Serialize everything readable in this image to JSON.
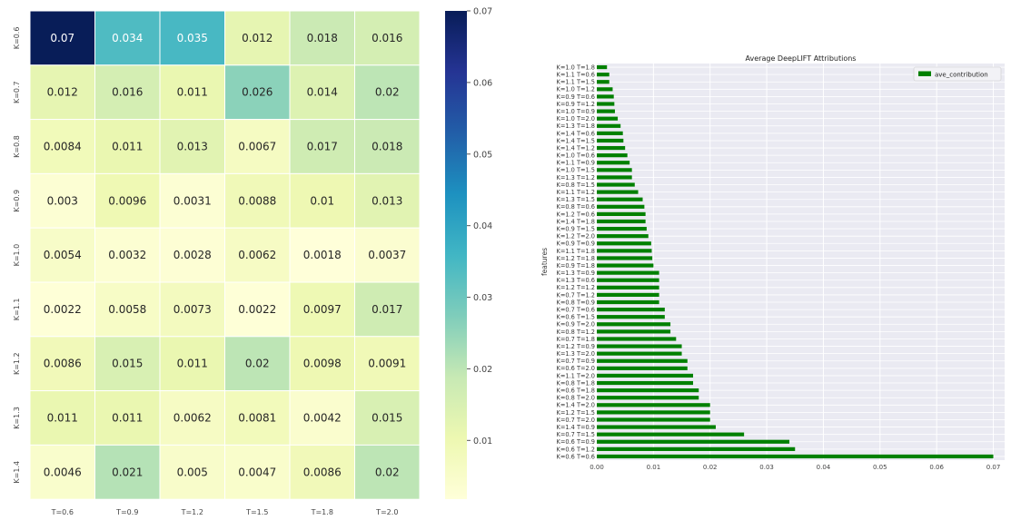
{
  "chart_data": [
    {
      "type": "heatmap",
      "title": "",
      "x_categories": [
        "T=0.6",
        "T=0.9",
        "T=1.2",
        "T=1.5",
        "T=1.8",
        "T=2.0"
      ],
      "y_categories": [
        "K=0.6",
        "K=0.7",
        "K=0.8",
        "K=0.9",
        "K=1.0",
        "K=1.1",
        "K=1.2",
        "K=1.3",
        "K=1.4"
      ],
      "values": [
        [
          0.07,
          0.034,
          0.035,
          0.012,
          0.018,
          0.016
        ],
        [
          0.012,
          0.016,
          0.011,
          0.026,
          0.014,
          0.02
        ],
        [
          0.0084,
          0.011,
          0.013,
          0.0067,
          0.017,
          0.018
        ],
        [
          0.003,
          0.0096,
          0.0031,
          0.0088,
          0.01,
          0.013
        ],
        [
          0.0054,
          0.0032,
          0.0028,
          0.0062,
          0.0018,
          0.0037
        ],
        [
          0.0022,
          0.0058,
          0.0073,
          0.0022,
          0.0097,
          0.017
        ],
        [
          0.0086,
          0.015,
          0.011,
          0.02,
          0.0098,
          0.0091
        ],
        [
          0.011,
          0.011,
          0.0062,
          0.0081,
          0.0042,
          0.015
        ],
        [
          0.0046,
          0.021,
          0.005,
          0.0047,
          0.0086,
          0.02
        ]
      ],
      "colorscale": "YlGnBu",
      "vmin": 0.0018,
      "vmax": 0.07,
      "colorbar_ticks": [
        "0.01",
        "0.02",
        "0.03",
        "0.04",
        "0.05",
        "0.06",
        "0.07"
      ]
    },
    {
      "type": "bar",
      "orientation": "horizontal",
      "title": "Average DeepLIFT Attributions",
      "xlabel": "",
      "ylabel": "features",
      "xlim": [
        0,
        0.072
      ],
      "x_ticks": [
        "0.00",
        "0.01",
        "0.02",
        "0.03",
        "0.04",
        "0.05",
        "0.06",
        "0.07"
      ],
      "grid": true,
      "legend_position": "top-right",
      "series": [
        {
          "name": "ave_contribution",
          "color": "#008000"
        }
      ],
      "categories": [
        "K=1.0 T=1.8",
        "K=1.1 T=0.6",
        "K=1.1 T=1.5",
        "K=1.0 T=1.2",
        "K=0.9 T=0.6",
        "K=0.9 T=1.2",
        "K=1.0 T=0.9",
        "K=1.0 T=2.0",
        "K=1.3 T=1.8",
        "K=1.4 T=0.6",
        "K=1.4 T=1.5",
        "K=1.4 T=1.2",
        "K=1.0 T=0.6",
        "K=1.1 T=0.9",
        "K=1.0 T=1.5",
        "K=1.3 T=1.2",
        "K=0.8 T=1.5",
        "K=1.1 T=1.2",
        "K=1.3 T=1.5",
        "K=0.8 T=0.6",
        "K=1.2 T=0.6",
        "K=1.4 T=1.8",
        "K=0.9 T=1.5",
        "K=1.2 T=2.0",
        "K=0.9 T=0.9",
        "K=1.1 T=1.8",
        "K=1.2 T=1.8",
        "K=0.9 T=1.8",
        "K=1.3 T=0.9",
        "K=1.3 T=0.6",
        "K=1.2 T=1.2",
        "K=0.7 T=1.2",
        "K=0.8 T=0.9",
        "K=0.7 T=0.6",
        "K=0.6 T=1.5",
        "K=0.9 T=2.0",
        "K=0.8 T=1.2",
        "K=0.7 T=1.8",
        "K=1.2 T=0.9",
        "K=1.3 T=2.0",
        "K=0.7 T=0.9",
        "K=0.6 T=2.0",
        "K=1.1 T=2.0",
        "K=0.8 T=1.8",
        "K=0.6 T=1.8",
        "K=0.8 T=2.0",
        "K=1.4 T=2.0",
        "K=1.2 T=1.5",
        "K=0.7 T=2.0",
        "K=1.4 T=0.9",
        "K=0.7 T=1.5",
        "K=0.6 T=0.9",
        "K=0.6 T=1.2",
        "K=0.6 T=0.6"
      ],
      "values": [
        0.0018,
        0.0022,
        0.0022,
        0.0028,
        0.003,
        0.0031,
        0.0032,
        0.0037,
        0.0042,
        0.0046,
        0.0047,
        0.005,
        0.0054,
        0.0058,
        0.0062,
        0.0062,
        0.0067,
        0.0073,
        0.0081,
        0.0084,
        0.0086,
        0.0086,
        0.0088,
        0.0091,
        0.0096,
        0.0097,
        0.0098,
        0.01,
        0.011,
        0.011,
        0.011,
        0.011,
        0.011,
        0.012,
        0.012,
        0.013,
        0.013,
        0.014,
        0.015,
        0.015,
        0.016,
        0.016,
        0.017,
        0.017,
        0.018,
        0.018,
        0.02,
        0.02,
        0.02,
        0.021,
        0.026,
        0.034,
        0.035,
        0.07
      ]
    }
  ]
}
